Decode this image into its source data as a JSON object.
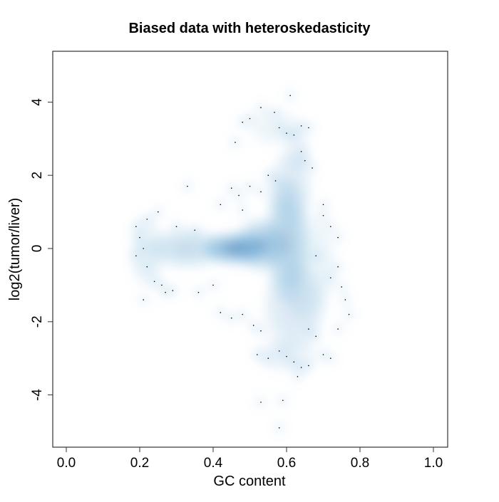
{
  "chart_data": {
    "type": "scatter",
    "style": "smoothed density scatter (blue color ramp)",
    "title": "Biased data with heteroskedasticity",
    "xlabel": "GC content",
    "ylabel": "log2(tumor/liver)",
    "xlim": [
      -0.04,
      1.04
    ],
    "ylim": [
      -5.4,
      5.4
    ],
    "xticks": [
      "0.0",
      "0.2",
      "0.4",
      "0.6",
      "0.8",
      "1.0"
    ],
    "xtick_values": [
      0,
      0.2,
      0.4,
      0.6,
      0.8,
      1.0
    ],
    "yticks": [
      "-4",
      "-2",
      "0",
      "2",
      "4"
    ],
    "ytick_values": [
      -4,
      -2,
      0,
      2,
      4
    ],
    "grid": false,
    "colors": {
      "low": "#f7fbff",
      "mid": "#6baed6",
      "high": "#08306b"
    },
    "density_regions": [
      {
        "x": 0.46,
        "y": 0.0,
        "sx": 0.075,
        "sy": 0.38,
        "weight": 1.0
      },
      {
        "x": 0.53,
        "y": 0.1,
        "sx": 0.06,
        "sy": 0.6,
        "weight": 0.7
      },
      {
        "x": 0.33,
        "y": 0.0,
        "sx": 0.09,
        "sy": 0.45,
        "weight": 0.45
      },
      {
        "x": 0.22,
        "y": -0.1,
        "sx": 0.04,
        "sy": 0.8,
        "weight": 0.2
      },
      {
        "x": 0.6,
        "y": 0.2,
        "sx": 0.05,
        "sy": 1.4,
        "weight": 0.55
      },
      {
        "x": 0.61,
        "y": 1.6,
        "sx": 0.05,
        "sy": 0.9,
        "weight": 0.3
      },
      {
        "x": 0.62,
        "y": -1.6,
        "sx": 0.07,
        "sy": 1.0,
        "weight": 0.3
      },
      {
        "x": 0.66,
        "y": -0.5,
        "sx": 0.06,
        "sy": 1.2,
        "weight": 0.2
      },
      {
        "x": 0.57,
        "y": 3.3,
        "sx": 0.06,
        "sy": 0.4,
        "weight": 0.12
      },
      {
        "x": 0.63,
        "y": 2.7,
        "sx": 0.03,
        "sy": 0.5,
        "weight": 0.15
      },
      {
        "x": 0.6,
        "y": -2.9,
        "sx": 0.07,
        "sy": 0.4,
        "weight": 0.15
      }
    ],
    "points": [
      [
        0.61,
        4.18
      ],
      [
        0.567,
        3.72
      ],
      [
        0.53,
        3.85
      ],
      [
        0.48,
        3.45
      ],
      [
        0.5,
        3.55
      ],
      [
        0.58,
        3.3
      ],
      [
        0.6,
        3.15
      ],
      [
        0.64,
        3.35
      ],
      [
        0.66,
        3.3
      ],
      [
        0.62,
        3.1
      ],
      [
        0.46,
        2.9
      ],
      [
        0.64,
        2.65
      ],
      [
        0.65,
        2.4
      ],
      [
        0.67,
        2.2
      ],
      [
        0.55,
        2.0
      ],
      [
        0.57,
        1.85
      ],
      [
        0.5,
        1.7
      ],
      [
        0.45,
        1.65
      ],
      [
        0.47,
        1.45
      ],
      [
        0.53,
        1.55
      ],
      [
        0.33,
        1.7
      ],
      [
        0.42,
        1.2
      ],
      [
        0.48,
        1.05
      ],
      [
        0.7,
        1.2
      ],
      [
        0.7,
        0.9
      ],
      [
        0.72,
        0.6
      ],
      [
        0.74,
        0.3
      ],
      [
        0.25,
        1.0
      ],
      [
        0.22,
        0.8
      ],
      [
        0.19,
        0.6
      ],
      [
        0.2,
        0.3
      ],
      [
        0.21,
        0.0
      ],
      [
        0.19,
        -0.2
      ],
      [
        0.22,
        -0.5
      ],
      [
        0.24,
        -0.9
      ],
      [
        0.26,
        -1.0
      ],
      [
        0.27,
        -1.2
      ],
      [
        0.29,
        -1.15
      ],
      [
        0.21,
        -1.4
      ],
      [
        0.36,
        -1.2
      ],
      [
        0.4,
        -1.0
      ],
      [
        0.42,
        -1.75
      ],
      [
        0.45,
        -1.9
      ],
      [
        0.48,
        -1.8
      ],
      [
        0.51,
        -2.1
      ],
      [
        0.53,
        -2.25
      ],
      [
        0.52,
        -2.9
      ],
      [
        0.55,
        -3.0
      ],
      [
        0.58,
        -2.8
      ],
      [
        0.6,
        -2.95
      ],
      [
        0.62,
        -3.1
      ],
      [
        0.64,
        -3.25
      ],
      [
        0.66,
        -3.2
      ],
      [
        0.63,
        -3.5
      ],
      [
        0.7,
        -2.9
      ],
      [
        0.72,
        -3.0
      ],
      [
        0.68,
        -2.4
      ],
      [
        0.66,
        -2.2
      ],
      [
        0.74,
        -2.2
      ],
      [
        0.77,
        -1.8
      ],
      [
        0.76,
        -1.4
      ],
      [
        0.75,
        -1.05
      ],
      [
        0.72,
        -0.8
      ],
      [
        0.53,
        -4.2
      ],
      [
        0.59,
        -4.15
      ],
      [
        0.58,
        -4.9
      ],
      [
        0.74,
        -0.5
      ],
      [
        0.68,
        -0.2
      ],
      [
        0.35,
        0.5
      ],
      [
        0.3,
        0.6
      ]
    ]
  }
}
